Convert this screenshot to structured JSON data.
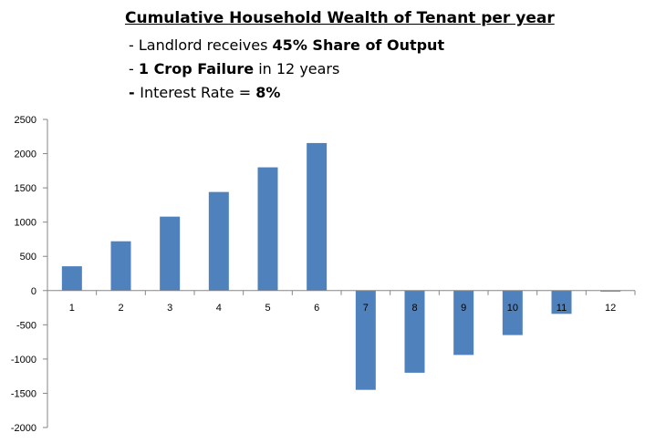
{
  "header": {
    "title": "Cumulative Household Wealth of Tenant per year",
    "line1_prefix": "- Landlord receives ",
    "line1_bold": "45% Share of Output",
    "line2_prefix": "- ",
    "line2_bold": "1 Crop Failure",
    "line2_suffix": " in 12 years",
    "line3_prefix": "- ",
    "line3_mid": "Interest Rate = ",
    "line3_bold": "8%"
  },
  "chart_data": {
    "type": "bar",
    "categories": [
      "1",
      "2",
      "3",
      "4",
      "5",
      "6",
      "7",
      "8",
      "9",
      "10",
      "11",
      "12"
    ],
    "values": [
      355,
      720,
      1080,
      1440,
      1800,
      2155,
      -1450,
      -1200,
      -940,
      -650,
      -340,
      -15
    ],
    "ylim": [
      -2000,
      2500
    ],
    "yticks": [
      2500,
      2000,
      1500,
      1000,
      500,
      0,
      -500,
      -1000,
      -1500,
      -2000
    ],
    "grid": false,
    "bar_color": "#4f81bd",
    "axis_color": "#868686"
  }
}
